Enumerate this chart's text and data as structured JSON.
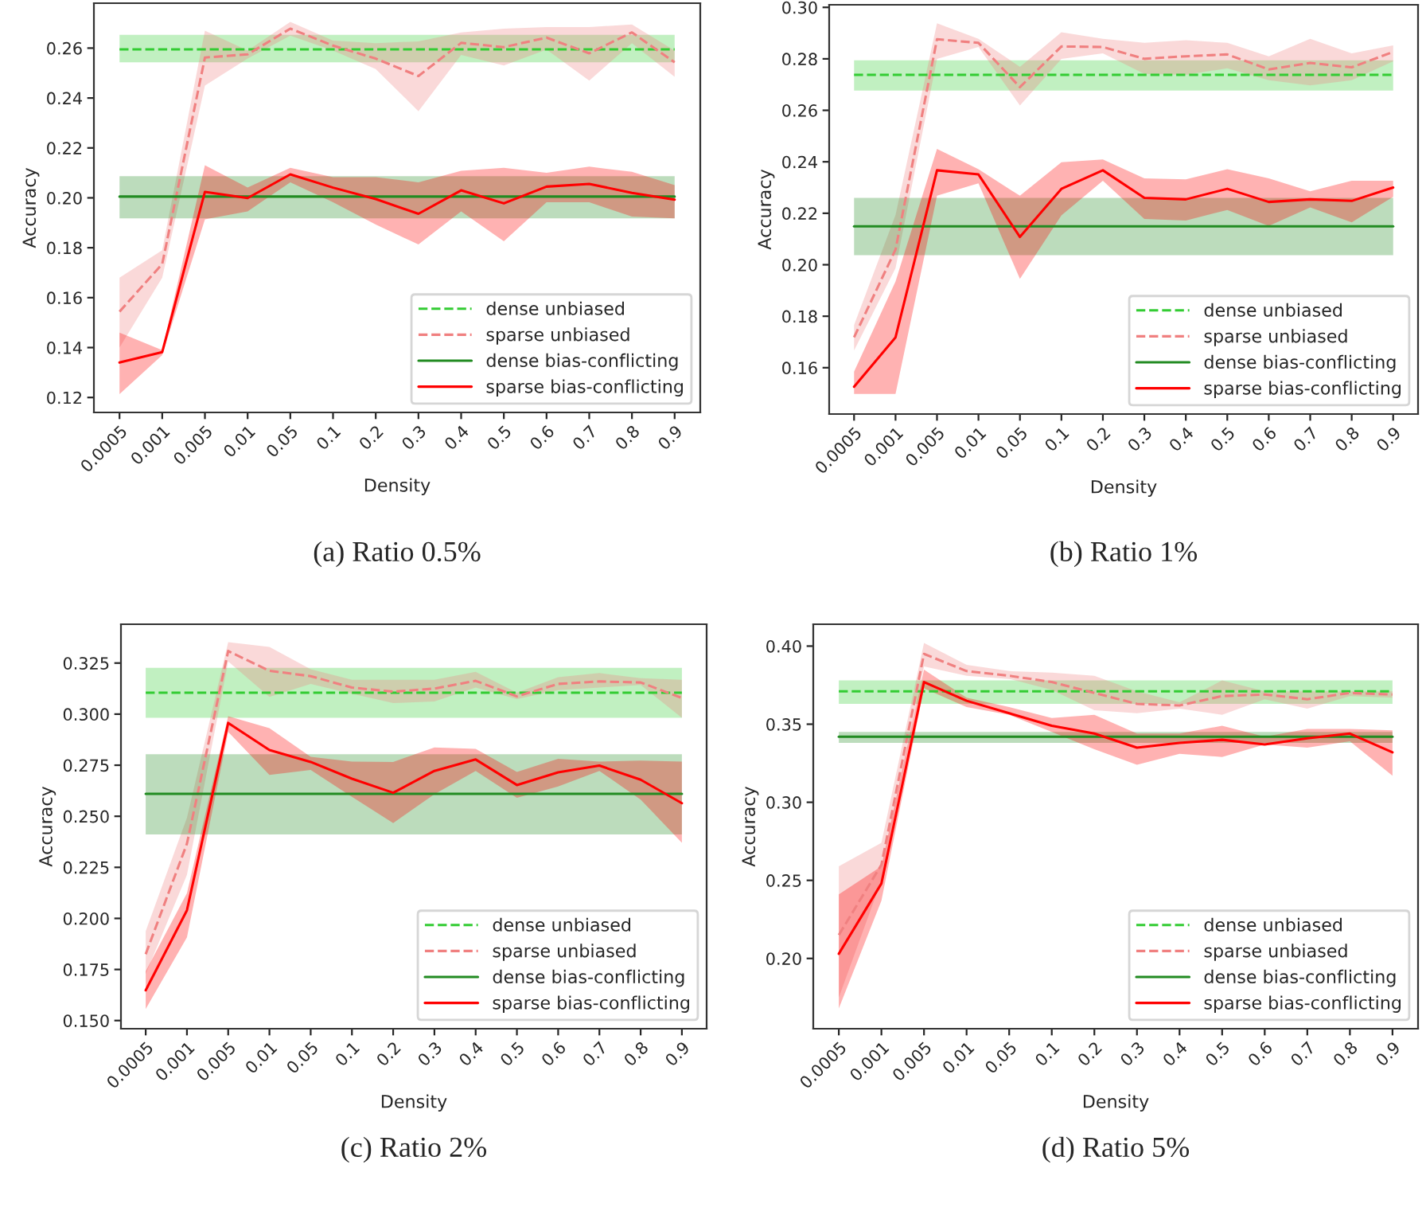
{
  "chart_data": [
    {
      "type": "line",
      "title": "(a) Ratio 0.5%",
      "xlabel": "Density",
      "ylabel": "Accuracy",
      "categories": [
        "0.0005",
        "0.001",
        "0.005",
        "0.01",
        "0.05",
        "0.1",
        "0.2",
        "0.3",
        "0.4",
        "0.5",
        "0.6",
        "0.7",
        "0.8",
        "0.9"
      ],
      "ylim": [
        0.114,
        0.278
      ],
      "yticks": [
        {
          "value": 0.12,
          "label": "0.12"
        },
        {
          "value": 0.14,
          "label": "0.14"
        },
        {
          "value": 0.16,
          "label": "0.16"
        },
        {
          "value": 0.18,
          "label": "0.18"
        },
        {
          "value": 0.2,
          "label": "0.20"
        },
        {
          "value": 0.22,
          "label": "0.22"
        },
        {
          "value": 0.24,
          "label": "0.24"
        },
        {
          "value": 0.26,
          "label": "0.26"
        }
      ],
      "grid": false,
      "legend": "bottom right",
      "marker": "none",
      "series": [
        {
          "name": "dense unbiased",
          "color": "#33cc33",
          "line_style": "dashed",
          "values": [
            0.2595,
            0.2595,
            0.2595,
            0.2595,
            0.2595,
            0.2595,
            0.2595,
            0.2595,
            0.2595,
            0.2595,
            0.2595,
            0.2595,
            0.2595,
            0.2595
          ],
          "lower": [
            0.2543,
            0.2543,
            0.2543,
            0.2543,
            0.2543,
            0.2543,
            0.2543,
            0.2543,
            0.2543,
            0.2543,
            0.2543,
            0.2543,
            0.2543,
            0.2543
          ],
          "upper": [
            0.2653,
            0.2653,
            0.2653,
            0.2653,
            0.2653,
            0.2653,
            0.2653,
            0.2653,
            0.2653,
            0.2653,
            0.2653,
            0.2653,
            0.2653,
            0.2653
          ]
        },
        {
          "name": "sparse unbiased",
          "color": "#f08080",
          "line_style": "dashed",
          "values": [
            0.1544,
            0.1735,
            0.2562,
            0.2575,
            0.2678,
            0.261,
            0.2558,
            0.2488,
            0.2621,
            0.2604,
            0.2642,
            0.2579,
            0.2663,
            0.2543
          ],
          "lower": [
            0.14,
            0.168,
            0.245,
            0.2558,
            0.265,
            0.259,
            0.2516,
            0.2347,
            0.2573,
            0.253,
            0.2594,
            0.247,
            0.262,
            0.2485
          ],
          "upper": [
            0.168,
            0.179,
            0.267,
            0.259,
            0.2705,
            0.263,
            0.262,
            0.2627,
            0.2663,
            0.2678,
            0.2684,
            0.2684,
            0.2695,
            0.259
          ]
        },
        {
          "name": "dense bias-conflicting",
          "color": "#228b22",
          "line_style": "solid",
          "values": [
            0.2005,
            0.2005,
            0.2005,
            0.2005,
            0.2005,
            0.2005,
            0.2005,
            0.2005,
            0.2005,
            0.2005,
            0.2005,
            0.2005,
            0.2005,
            0.2005
          ],
          "lower": [
            0.1918,
            0.1918,
            0.1918,
            0.1918,
            0.1918,
            0.1918,
            0.1918,
            0.1918,
            0.1918,
            0.1918,
            0.1918,
            0.1918,
            0.1918,
            0.1918
          ],
          "upper": [
            0.2087,
            0.2087,
            0.2087,
            0.2087,
            0.2087,
            0.2087,
            0.2087,
            0.2087,
            0.2087,
            0.2087,
            0.2087,
            0.2087,
            0.2087,
            0.2087
          ]
        },
        {
          "name": "sparse bias-conflicting",
          "color": "#ff0000",
          "line_style": "solid",
          "values": [
            0.134,
            0.1382,
            0.2024,
            0.1999,
            0.2094,
            0.2041,
            0.1995,
            0.1936,
            0.203,
            0.1978,
            0.2045,
            0.2056,
            0.202,
            0.1993
          ],
          "lower": [
            0.1213,
            0.137,
            0.1914,
            0.1946,
            0.2062,
            0.1982,
            0.1893,
            0.1813,
            0.1946,
            0.1826,
            0.1982,
            0.1982,
            0.1925,
            0.1918
          ],
          "upper": [
            0.146,
            0.139,
            0.2131,
            0.2041,
            0.212,
            0.2083,
            0.2083,
            0.2062,
            0.2108,
            0.212,
            0.21,
            0.2125,
            0.2104,
            0.2051
          ]
        }
      ]
    },
    {
      "type": "line",
      "title": "(b) Ratio 1%",
      "xlabel": "Density",
      "ylabel": "Accuracy",
      "categories": [
        "0.0005",
        "0.001",
        "0.005",
        "0.01",
        "0.05",
        "0.1",
        "0.2",
        "0.3",
        "0.4",
        "0.5",
        "0.6",
        "0.7",
        "0.8",
        "0.9"
      ],
      "ylim": [
        0.142,
        0.301
      ],
      "yticks": [
        {
          "value": 0.16,
          "label": "0.16"
        },
        {
          "value": 0.18,
          "label": "0.18"
        },
        {
          "value": 0.2,
          "label": "0.20"
        },
        {
          "value": 0.22,
          "label": "0.22"
        },
        {
          "value": 0.24,
          "label": "0.24"
        },
        {
          "value": 0.26,
          "label": "0.26"
        },
        {
          "value": 0.28,
          "label": "0.28"
        },
        {
          "value": 0.3,
          "label": "0.30"
        }
      ],
      "grid": false,
      "legend": "bottom right",
      "marker": "none",
      "series": [
        {
          "name": "dense unbiased",
          "color": "#33cc33",
          "line_style": "dashed",
          "values": [
            0.2738,
            0.2738,
            0.2738,
            0.2738,
            0.2738,
            0.2738,
            0.2738,
            0.2738,
            0.2738,
            0.2738,
            0.2738,
            0.2738,
            0.2738,
            0.2738
          ],
          "lower": [
            0.2677,
            0.2677,
            0.2677,
            0.2677,
            0.2677,
            0.2677,
            0.2677,
            0.2677,
            0.2677,
            0.2677,
            0.2677,
            0.2677,
            0.2677,
            0.2677
          ],
          "upper": [
            0.2794,
            0.2794,
            0.2794,
            0.2794,
            0.2794,
            0.2794,
            0.2794,
            0.2794,
            0.2794,
            0.2794,
            0.2794,
            0.2794,
            0.2794,
            0.2794
          ]
        },
        {
          "name": "sparse unbiased",
          "color": "#f08080",
          "line_style": "dashed",
          "values": [
            0.1718,
            0.2059,
            0.2876,
            0.2862,
            0.269,
            0.2848,
            0.2846,
            0.28,
            0.281,
            0.2817,
            0.2759,
            0.2784,
            0.2767,
            0.2827
          ],
          "lower": [
            0.1667,
            0.1987,
            0.28,
            0.2846,
            0.2619,
            0.28,
            0.2821,
            0.2742,
            0.2738,
            0.2763,
            0.2717,
            0.2697,
            0.2717,
            0.279
          ],
          "upper": [
            0.1766,
            0.2193,
            0.2938,
            0.2878,
            0.2769,
            0.2903,
            0.2878,
            0.2862,
            0.2872,
            0.2862,
            0.281,
            0.2878,
            0.2821,
            0.2852
          ]
        },
        {
          "name": "dense bias-conflicting",
          "color": "#228b22",
          "line_style": "solid",
          "values": [
            0.2149,
            0.2149,
            0.2149,
            0.2149,
            0.2149,
            0.2149,
            0.2149,
            0.2149,
            0.2149,
            0.2149,
            0.2149,
            0.2149,
            0.2149,
            0.2149
          ],
          "lower": [
            0.2037,
            0.2037,
            0.2037,
            0.2037,
            0.2037,
            0.2037,
            0.2037,
            0.2037,
            0.2037,
            0.2037,
            0.2037,
            0.2037,
            0.2037,
            0.2037
          ],
          "upper": [
            0.226,
            0.226,
            0.226,
            0.226,
            0.226,
            0.226,
            0.226,
            0.226,
            0.226,
            0.226,
            0.226,
            0.226,
            0.226,
            0.226
          ]
        },
        {
          "name": "sparse bias-conflicting",
          "color": "#ff0000",
          "line_style": "solid",
          "values": [
            0.1526,
            0.1718,
            0.2367,
            0.2351,
            0.2108,
            0.2295,
            0.2367,
            0.226,
            0.2254,
            0.2295,
            0.2244,
            0.2254,
            0.2248,
            0.23
          ],
          "lower": [
            0.1498,
            0.1498,
            0.2268,
            0.2316,
            0.1945,
            0.2192,
            0.2326,
            0.2178,
            0.2172,
            0.2213,
            0.2151,
            0.2223,
            0.2165,
            0.2264
          ],
          "upper": [
            0.1585,
            0.1935,
            0.245,
            0.2371,
            0.2268,
            0.2398,
            0.2409,
            0.2336,
            0.2332,
            0.2371,
            0.2336,
            0.2285,
            0.2326,
            0.2326
          ]
        }
      ]
    },
    {
      "type": "line",
      "title": "(c) Ratio 2%",
      "xlabel": "Density",
      "ylabel": "Accuracy",
      "categories": [
        "0.0005",
        "0.001",
        "0.005",
        "0.01",
        "0.05",
        "0.1",
        "0.2",
        "0.3",
        "0.4",
        "0.5",
        "0.6",
        "0.7",
        "0.8",
        "0.9"
      ],
      "ylim": [
        0.146,
        0.344
      ],
      "yticks": [
        {
          "value": 0.15,
          "label": "0.150"
        },
        {
          "value": 0.175,
          "label": "0.175"
        },
        {
          "value": 0.2,
          "label": "0.200"
        },
        {
          "value": 0.225,
          "label": "0.225"
        },
        {
          "value": 0.25,
          "label": "0.250"
        },
        {
          "value": 0.275,
          "label": "0.275"
        },
        {
          "value": 0.3,
          "label": "0.300"
        },
        {
          "value": 0.325,
          "label": "0.325"
        }
      ],
      "grid": false,
      "legend": "bottom right",
      "marker": "none",
      "series": [
        {
          "name": "dense unbiased",
          "color": "#33cc33",
          "line_style": "dashed",
          "values": [
            0.3105,
            0.3105,
            0.3105,
            0.3105,
            0.3105,
            0.3105,
            0.3105,
            0.3105,
            0.3105,
            0.3105,
            0.3105,
            0.3105,
            0.3105,
            0.3105
          ],
          "lower": [
            0.2982,
            0.2982,
            0.2982,
            0.2982,
            0.2982,
            0.2982,
            0.2982,
            0.2982,
            0.2982,
            0.2982,
            0.2982,
            0.2982,
            0.2982,
            0.2982
          ],
          "upper": [
            0.3227,
            0.3227,
            0.3227,
            0.3227,
            0.3227,
            0.3227,
            0.3227,
            0.3227,
            0.3227,
            0.3227,
            0.3227,
            0.3227,
            0.3227,
            0.3227
          ]
        },
        {
          "name": "sparse unbiased",
          "color": "#f08080",
          "line_style": "dashed",
          "values": [
            0.1825,
            0.2366,
            0.3309,
            0.3212,
            0.3186,
            0.313,
            0.311,
            0.3125,
            0.3163,
            0.3087,
            0.3148,
            0.316,
            0.3155,
            0.3079
          ],
          "lower": [
            0.1728,
            0.2213,
            0.3258,
            0.3084,
            0.3148,
            0.31,
            0.3054,
            0.3062,
            0.313,
            0.3074,
            0.3117,
            0.313,
            0.3143,
            0.2982
          ],
          "upper": [
            0.1937,
            0.2493,
            0.3352,
            0.3329,
            0.322,
            0.3168,
            0.3168,
            0.3168,
            0.3207,
            0.3105,
            0.3181,
            0.3201,
            0.3176,
            0.3168
          ]
        },
        {
          "name": "dense bias-conflicting",
          "color": "#228b22",
          "line_style": "solid",
          "values": [
            0.261,
            0.261,
            0.261,
            0.261,
            0.261,
            0.261,
            0.261,
            0.261,
            0.261,
            0.261,
            0.261,
            0.261,
            0.261,
            0.261
          ],
          "lower": [
            0.2411,
            0.2411,
            0.2411,
            0.2411,
            0.2411,
            0.2411,
            0.2411,
            0.2411,
            0.2411,
            0.2411,
            0.2411,
            0.2411,
            0.2411,
            0.2411
          ],
          "upper": [
            0.2804,
            0.2804,
            0.2804,
            0.2804,
            0.2804,
            0.2804,
            0.2804,
            0.2804,
            0.2804,
            0.2804,
            0.2804,
            0.2804,
            0.2804,
            0.2804
          ]
        },
        {
          "name": "sparse bias-conflicting",
          "color": "#ff0000",
          "line_style": "solid",
          "values": [
            0.1648,
            0.204,
            0.2957,
            0.2824,
            0.2766,
            0.2684,
            0.2615,
            0.2722,
            0.2778,
            0.2653,
            0.2715,
            0.2748,
            0.2679,
            0.2564
          ],
          "lower": [
            0.1556,
            0.1907,
            0.2913,
            0.2702,
            0.2727,
            0.2595,
            0.2467,
            0.2608,
            0.2722,
            0.259,
            0.2646,
            0.2722,
            0.2582,
            0.237
          ],
          "upper": [
            0.1742,
            0.2124,
            0.299,
            0.2931,
            0.2791,
            0.2768,
            0.2766,
            0.2837,
            0.283,
            0.2717,
            0.2781,
            0.2768,
            0.2773,
            0.2768
          ]
        }
      ]
    },
    {
      "type": "line",
      "title": "(d) Ratio 5%",
      "xlabel": "Density",
      "ylabel": "Accuracy",
      "categories": [
        "0.0005",
        "0.001",
        "0.005",
        "0.01",
        "0.05",
        "0.1",
        "0.2",
        "0.3",
        "0.4",
        "0.5",
        "0.6",
        "0.7",
        "0.8",
        "0.9"
      ],
      "ylim": [
        0.155,
        0.414
      ],
      "yticks": [
        {
          "value": 0.2,
          "label": "0.20"
        },
        {
          "value": 0.25,
          "label": "0.25"
        },
        {
          "value": 0.3,
          "label": "0.30"
        },
        {
          "value": 0.35,
          "label": "0.35"
        },
        {
          "value": 0.4,
          "label": "0.40"
        }
      ],
      "grid": false,
      "legend": "bottom right",
      "marker": "none",
      "series": [
        {
          "name": "dense unbiased",
          "color": "#33cc33",
          "line_style": "dashed",
          "values": [
            0.371,
            0.371,
            0.371,
            0.371,
            0.371,
            0.371,
            0.371,
            0.371,
            0.371,
            0.371,
            0.371,
            0.371,
            0.371,
            0.371
          ],
          "lower": [
            0.363,
            0.363,
            0.363,
            0.363,
            0.363,
            0.363,
            0.363,
            0.363,
            0.363,
            0.363,
            0.363,
            0.363,
            0.363,
            0.363
          ],
          "upper": [
            0.378,
            0.378,
            0.378,
            0.378,
            0.378,
            0.378,
            0.378,
            0.378,
            0.378,
            0.378,
            0.378,
            0.378,
            0.378,
            0.378
          ]
        },
        {
          "name": "sparse unbiased",
          "color": "#f08080",
          "line_style": "dashed",
          "values": [
            0.215,
            0.26,
            0.395,
            0.384,
            0.381,
            0.377,
            0.37,
            0.363,
            0.362,
            0.368,
            0.369,
            0.366,
            0.37,
            0.369
          ],
          "lower": [
            0.175,
            0.25,
            0.387,
            0.381,
            0.379,
            0.372,
            0.359,
            0.357,
            0.36,
            0.356,
            0.366,
            0.36,
            0.368,
            0.367
          ],
          "upper": [
            0.259,
            0.274,
            0.402,
            0.388,
            0.384,
            0.383,
            0.381,
            0.371,
            0.364,
            0.378,
            0.371,
            0.371,
            0.371,
            0.371
          ]
        },
        {
          "name": "dense bias-conflicting",
          "color": "#228b22",
          "line_style": "solid",
          "values": [
            0.342,
            0.342,
            0.342,
            0.342,
            0.342,
            0.342,
            0.342,
            0.342,
            0.342,
            0.342,
            0.342,
            0.342,
            0.342,
            0.342
          ],
          "lower": [
            0.338,
            0.338,
            0.338,
            0.338,
            0.338,
            0.338,
            0.338,
            0.338,
            0.338,
            0.338,
            0.338,
            0.338,
            0.338,
            0.338
          ],
          "upper": [
            0.345,
            0.345,
            0.345,
            0.345,
            0.345,
            0.345,
            0.345,
            0.345,
            0.345,
            0.345,
            0.345,
            0.345,
            0.345,
            0.345
          ]
        },
        {
          "name": "sparse bias-conflicting",
          "color": "#ff0000",
          "line_style": "solid",
          "values": [
            0.203,
            0.248,
            0.377,
            0.365,
            0.357,
            0.349,
            0.344,
            0.335,
            0.338,
            0.34,
            0.337,
            0.341,
            0.344,
            0.332
          ],
          "lower": [
            0.168,
            0.237,
            0.373,
            0.361,
            0.356,
            0.345,
            0.334,
            0.324,
            0.331,
            0.329,
            0.337,
            0.335,
            0.339,
            0.317
          ],
          "upper": [
            0.241,
            0.259,
            0.385,
            0.367,
            0.361,
            0.354,
            0.356,
            0.344,
            0.344,
            0.349,
            0.342,
            0.347,
            0.347,
            0.346
          ]
        }
      ]
    }
  ]
}
